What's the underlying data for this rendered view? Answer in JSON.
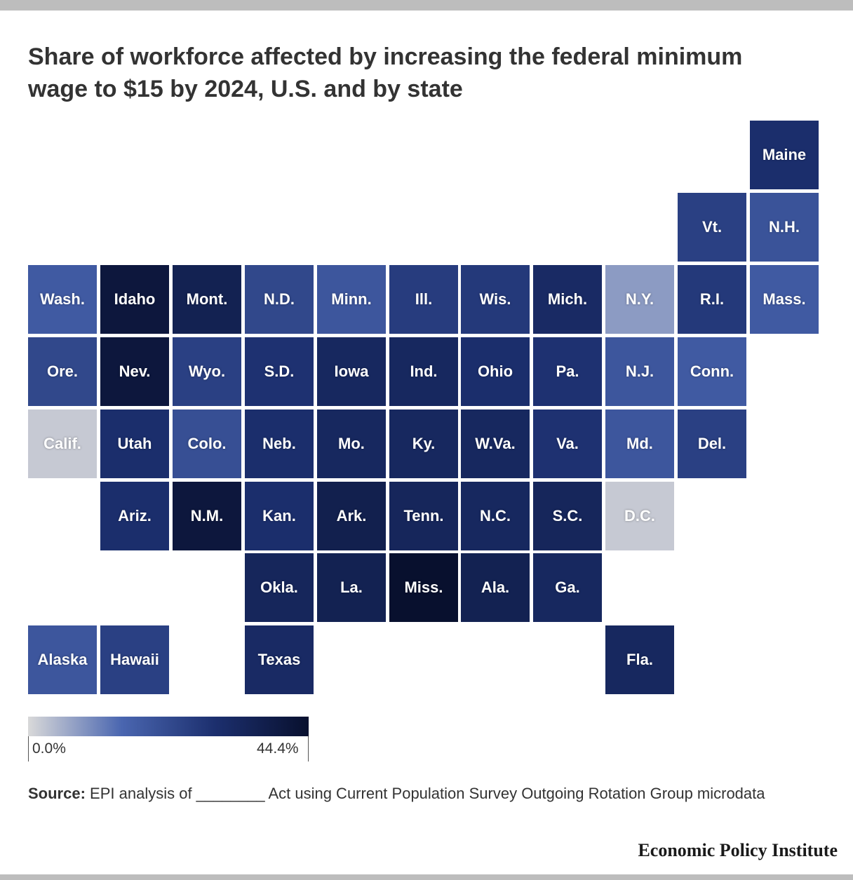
{
  "title": "Share of workforce affected by increasing the federal minimum wage to $15 by 2024, U.S. and by state",
  "legend": {
    "min_label": "0.0%",
    "max_label": "44.4%",
    "min": 0.0,
    "max": 44.4,
    "colors": [
      "#d9d9d9",
      "#4a66b0",
      "#1c2f6e",
      "#08102e"
    ]
  },
  "source": {
    "label": "Source:",
    "text": "EPI analysis of ________ Act using Current Population Survey Outgoing Rotation Group microdata"
  },
  "brand": "Economic Policy Institute",
  "chart_data": {
    "type": "tile-map",
    "title": "Share of workforce affected by increasing the federal minimum wage to $15 by 2024, U.S. and by state",
    "value_range": [
      0.0,
      44.4
    ],
    "states": [
      {
        "label": "Maine",
        "row": 0,
        "col": 10,
        "value": 30
      },
      {
        "label": "Vt.",
        "row": 1,
        "col": 9,
        "value": 25
      },
      {
        "label": "N.H.",
        "row": 1,
        "col": 10,
        "value": 20
      },
      {
        "label": "Wash.",
        "row": 2,
        "col": 0,
        "value": 18
      },
      {
        "label": "Idaho",
        "row": 2,
        "col": 1,
        "value": 41
      },
      {
        "label": "Mont.",
        "row": 2,
        "col": 2,
        "value": 36
      },
      {
        "label": "N.D.",
        "row": 2,
        "col": 3,
        "value": 23
      },
      {
        "label": "Minn.",
        "row": 2,
        "col": 4,
        "value": 19
      },
      {
        "label": "Ill.",
        "row": 2,
        "col": 5,
        "value": 26
      },
      {
        "label": "Wis.",
        "row": 2,
        "col": 6,
        "value": 27
      },
      {
        "label": "Mich.",
        "row": 2,
        "col": 7,
        "value": 32
      },
      {
        "label": "N.Y.",
        "row": 2,
        "col": 8,
        "value": 8
      },
      {
        "label": "R.I.",
        "row": 2,
        "col": 9,
        "value": 27
      },
      {
        "label": "Mass.",
        "row": 2,
        "col": 10,
        "value": 18
      },
      {
        "label": "Ore.",
        "row": 3,
        "col": 0,
        "value": 23
      },
      {
        "label": "Nev.",
        "row": 3,
        "col": 1,
        "value": 41
      },
      {
        "label": "Wyo.",
        "row": 3,
        "col": 2,
        "value": 25
      },
      {
        "label": "S.D.",
        "row": 3,
        "col": 3,
        "value": 29
      },
      {
        "label": "Iowa",
        "row": 3,
        "col": 4,
        "value": 33
      },
      {
        "label": "Ind.",
        "row": 3,
        "col": 5,
        "value": 33
      },
      {
        "label": "Ohio",
        "row": 3,
        "col": 6,
        "value": 30
      },
      {
        "label": "Pa.",
        "row": 3,
        "col": 7,
        "value": 29
      },
      {
        "label": "N.J.",
        "row": 3,
        "col": 8,
        "value": 19
      },
      {
        "label": "Conn.",
        "row": 3,
        "col": 9,
        "value": 18
      },
      {
        "label": "Calif.",
        "row": 4,
        "col": 0,
        "value": 2
      },
      {
        "label": "Utah",
        "row": 4,
        "col": 1,
        "value": 30
      },
      {
        "label": "Colo.",
        "row": 4,
        "col": 2,
        "value": 21
      },
      {
        "label": "Neb.",
        "row": 4,
        "col": 3,
        "value": 30
      },
      {
        "label": "Mo.",
        "row": 4,
        "col": 4,
        "value": 33
      },
      {
        "label": "Ky.",
        "row": 4,
        "col": 5,
        "value": 33
      },
      {
        "label": "W.Va.",
        "row": 4,
        "col": 6,
        "value": 33
      },
      {
        "label": "Va.",
        "row": 4,
        "col": 7,
        "value": 29
      },
      {
        "label": "Md.",
        "row": 4,
        "col": 8,
        "value": 19
      },
      {
        "label": "Del.",
        "row": 4,
        "col": 9,
        "value": 25
      },
      {
        "label": "Ariz.",
        "row": 5,
        "col": 1,
        "value": 30
      },
      {
        "label": "N.M.",
        "row": 5,
        "col": 2,
        "value": 41
      },
      {
        "label": "Kan.",
        "row": 5,
        "col": 3,
        "value": 30
      },
      {
        "label": "Ark.",
        "row": 5,
        "col": 4,
        "value": 37
      },
      {
        "label": "Tenn.",
        "row": 5,
        "col": 5,
        "value": 34
      },
      {
        "label": "N.C.",
        "row": 5,
        "col": 6,
        "value": 33
      },
      {
        "label": "S.C.",
        "row": 5,
        "col": 7,
        "value": 34
      },
      {
        "label": "D.C.",
        "row": 5,
        "col": 8,
        "value": 2
      },
      {
        "label": "Okla.",
        "row": 6,
        "col": 3,
        "value": 34
      },
      {
        "label": "La.",
        "row": 6,
        "col": 4,
        "value": 36
      },
      {
        "label": "Miss.",
        "row": 6,
        "col": 5,
        "value": 44.4
      },
      {
        "label": "Ala.",
        "row": 6,
        "col": 6,
        "value": 36
      },
      {
        "label": "Ga.",
        "row": 6,
        "col": 7,
        "value": 33
      },
      {
        "label": "Alaska",
        "row": 7,
        "col": 0,
        "value": 19
      },
      {
        "label": "Hawaii",
        "row": 7,
        "col": 1,
        "value": 25
      },
      {
        "label": "Texas",
        "row": 7,
        "col": 3,
        "value": 32
      },
      {
        "label": "Fla.",
        "row": 7,
        "col": 8,
        "value": 33
      }
    ]
  }
}
